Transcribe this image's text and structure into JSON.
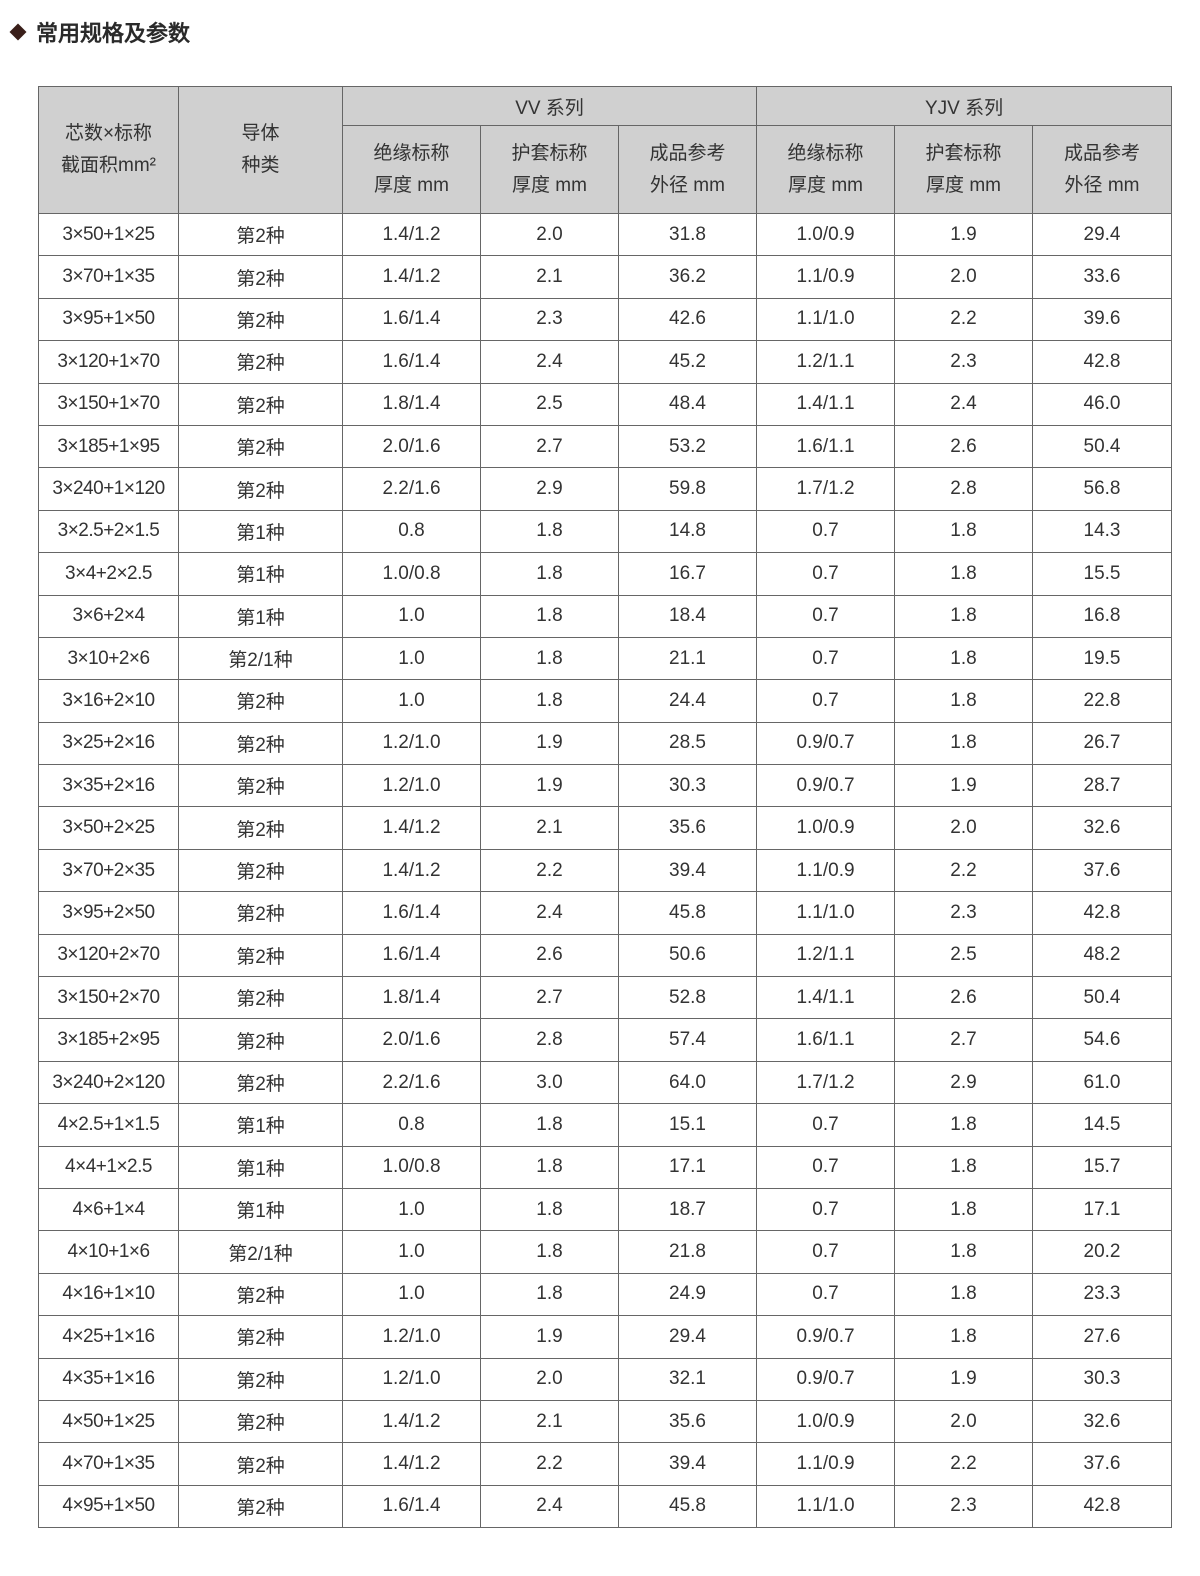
{
  "title": "常用规格及参数",
  "table": {
    "headers": {
      "spec": [
        "芯数×标称",
        "截面积mm²"
      ],
      "conductor": [
        "导体",
        "种类"
      ],
      "groups": [
        "VV 系列",
        "YJV 系列"
      ],
      "sub": [
        [
          "绝缘标称",
          "厚度 mm"
        ],
        [
          "护套标称",
          "厚度 mm"
        ],
        [
          "成品参考",
          "外径 mm"
        ],
        [
          "绝缘标称",
          "厚度 mm"
        ],
        [
          "护套标称",
          "厚度 mm"
        ],
        [
          "成品参考",
          "外径 mm"
        ]
      ]
    },
    "rows": [
      [
        "3×50+1×25",
        "第2种",
        "1.4/1.2",
        "2.0",
        "31.8",
        "1.0/0.9",
        "1.9",
        "29.4"
      ],
      [
        "3×70+1×35",
        "第2种",
        "1.4/1.2",
        "2.1",
        "36.2",
        "1.1/0.9",
        "2.0",
        "33.6"
      ],
      [
        "3×95+1×50",
        "第2种",
        "1.6/1.4",
        "2.3",
        "42.6",
        "1.1/1.0",
        "2.2",
        "39.6"
      ],
      [
        "3×120+1×70",
        "第2种",
        "1.6/1.4",
        "2.4",
        "45.2",
        "1.2/1.1",
        "2.3",
        "42.8"
      ],
      [
        "3×150+1×70",
        "第2种",
        "1.8/1.4",
        "2.5",
        "48.4",
        "1.4/1.1",
        "2.4",
        "46.0"
      ],
      [
        "3×185+1×95",
        "第2种",
        "2.0/1.6",
        "2.7",
        "53.2",
        "1.6/1.1",
        "2.6",
        "50.4"
      ],
      [
        "3×240+1×120",
        "第2种",
        "2.2/1.6",
        "2.9",
        "59.8",
        "1.7/1.2",
        "2.8",
        "56.8"
      ],
      [
        "3×2.5+2×1.5",
        "第1种",
        "0.8",
        "1.8",
        "14.8",
        "0.7",
        "1.8",
        "14.3"
      ],
      [
        "3×4+2×2.5",
        "第1种",
        "1.0/0.8",
        "1.8",
        "16.7",
        "0.7",
        "1.8",
        "15.5"
      ],
      [
        "3×6+2×4",
        "第1种",
        "1.0",
        "1.8",
        "18.4",
        "0.7",
        "1.8",
        "16.8"
      ],
      [
        "3×10+2×6",
        "第2/1种",
        "1.0",
        "1.8",
        "21.1",
        "0.7",
        "1.8",
        "19.5"
      ],
      [
        "3×16+2×10",
        "第2种",
        "1.0",
        "1.8",
        "24.4",
        "0.7",
        "1.8",
        "22.8"
      ],
      [
        "3×25+2×16",
        "第2种",
        "1.2/1.0",
        "1.9",
        "28.5",
        "0.9/0.7",
        "1.8",
        "26.7"
      ],
      [
        "3×35+2×16",
        "第2种",
        "1.2/1.0",
        "1.9",
        "30.3",
        "0.9/0.7",
        "1.9",
        "28.7"
      ],
      [
        "3×50+2×25",
        "第2种",
        "1.4/1.2",
        "2.1",
        "35.6",
        "1.0/0.9",
        "2.0",
        "32.6"
      ],
      [
        "3×70+2×35",
        "第2种",
        "1.4/1.2",
        "2.2",
        "39.4",
        "1.1/0.9",
        "2.2",
        "37.6"
      ],
      [
        "3×95+2×50",
        "第2种",
        "1.6/1.4",
        "2.4",
        "45.8",
        "1.1/1.0",
        "2.3",
        "42.8"
      ],
      [
        "3×120+2×70",
        "第2种",
        "1.6/1.4",
        "2.6",
        "50.6",
        "1.2/1.1",
        "2.5",
        "48.2"
      ],
      [
        "3×150+2×70",
        "第2种",
        "1.8/1.4",
        "2.7",
        "52.8",
        "1.4/1.1",
        "2.6",
        "50.4"
      ],
      [
        "3×185+2×95",
        "第2种",
        "2.0/1.6",
        "2.8",
        "57.4",
        "1.6/1.1",
        "2.7",
        "54.6"
      ],
      [
        "3×240+2×120",
        "第2种",
        "2.2/1.6",
        "3.0",
        "64.0",
        "1.7/1.2",
        "2.9",
        "61.0"
      ],
      [
        "4×2.5+1×1.5",
        "第1种",
        "0.8",
        "1.8",
        "15.1",
        "0.7",
        "1.8",
        "14.5"
      ],
      [
        "4×4+1×2.5",
        "第1种",
        "1.0/0.8",
        "1.8",
        "17.1",
        "0.7",
        "1.8",
        "15.7"
      ],
      [
        "4×6+1×4",
        "第1种",
        "1.0",
        "1.8",
        "18.7",
        "0.7",
        "1.8",
        "17.1"
      ],
      [
        "4×10+1×6",
        "第2/1种",
        "1.0",
        "1.8",
        "21.8",
        "0.7",
        "1.8",
        "20.2"
      ],
      [
        "4×16+1×10",
        "第2种",
        "1.0",
        "1.8",
        "24.9",
        "0.7",
        "1.8",
        "23.3"
      ],
      [
        "4×25+1×16",
        "第2种",
        "1.2/1.0",
        "1.9",
        "29.4",
        "0.9/0.7",
        "1.8",
        "27.6"
      ],
      [
        "4×35+1×16",
        "第2种",
        "1.2/1.0",
        "2.0",
        "32.1",
        "0.9/0.7",
        "1.9",
        "30.3"
      ],
      [
        "4×50+1×25",
        "第2种",
        "1.4/1.2",
        "2.1",
        "35.6",
        "1.0/0.9",
        "2.0",
        "32.6"
      ],
      [
        "4×70+1×35",
        "第2种",
        "1.4/1.2",
        "2.2",
        "39.4",
        "1.1/0.9",
        "2.2",
        "37.6"
      ],
      [
        "4×95+1×50",
        "第2种",
        "1.6/1.4",
        "2.4",
        "45.8",
        "1.1/1.0",
        "2.3",
        "42.8"
      ]
    ]
  },
  "colors": {
    "header_bg": "#d0d0d0",
    "border": "#666666",
    "bullet": "#3a1f1a"
  }
}
